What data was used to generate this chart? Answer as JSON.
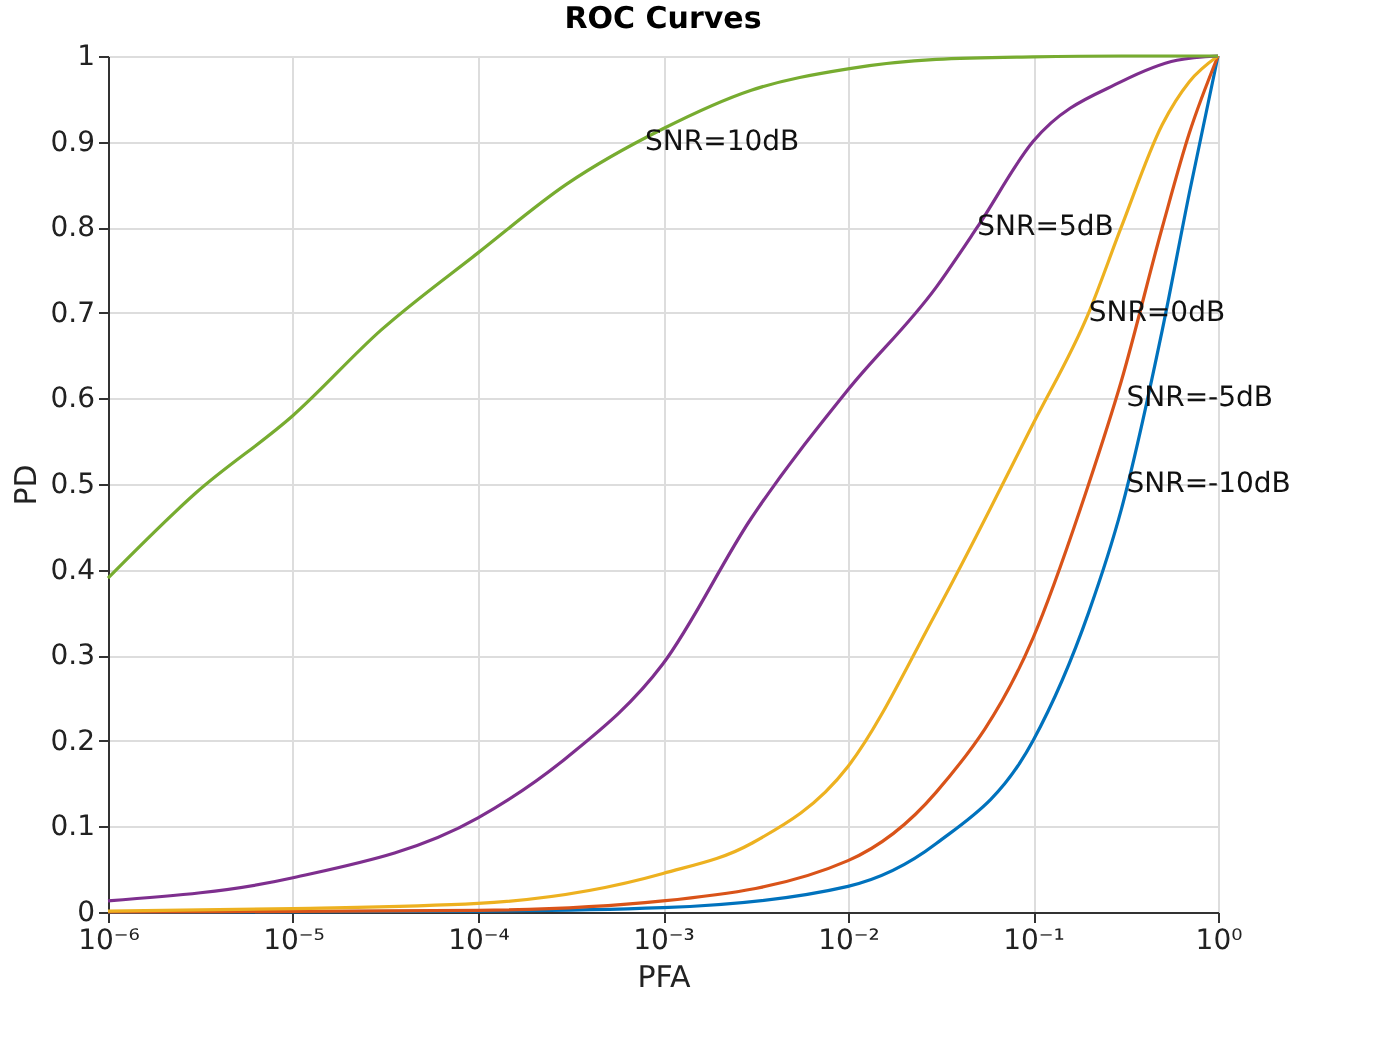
{
  "chart_data": {
    "type": "line",
    "title": "ROC Curves",
    "xlabel": "PFA",
    "ylabel": "PD",
    "log": "x",
    "xlim": [
      1e-06,
      1
    ],
    "ylim": [
      0,
      1
    ],
    "xticks": [
      {
        "value": 1e-06,
        "label": "10⁻⁶"
      },
      {
        "value": 1e-05,
        "label": "10⁻⁵"
      },
      {
        "value": 0.0001,
        "label": "10⁻⁴"
      },
      {
        "value": 0.001,
        "label": "10⁻³"
      },
      {
        "value": 0.01,
        "label": "10⁻²"
      },
      {
        "value": 0.1,
        "label": "10⁻¹"
      },
      {
        "value": 1,
        "label": "10⁰"
      }
    ],
    "yticks": [
      0,
      0.1,
      0.2,
      0.3,
      0.4,
      0.5,
      0.6,
      0.7,
      0.8,
      0.9,
      1
    ],
    "grid": true,
    "line_style": "solid",
    "marker": "none",
    "series": [
      {
        "color": "#0072bd",
        "x": [
          1e-06,
          0.0001,
          0.001,
          0.01,
          0.03,
          0.1,
          0.2,
          0.3,
          0.5,
          0.7,
          1
        ],
        "values": [
          0,
          0.001,
          0.005,
          0.03,
          0.08,
          0.2,
          0.35,
          0.47,
          0.68,
          0.84,
          1
        ]
      },
      {
        "color": "#d95319",
        "x": [
          1e-06,
          0.0001,
          0.001,
          0.01,
          0.03,
          0.1,
          0.2,
          0.3,
          0.5,
          0.7,
          1
        ],
        "values": [
          0,
          0.002,
          0.013,
          0.06,
          0.14,
          0.32,
          0.5,
          0.62,
          0.8,
          0.91,
          1
        ]
      },
      {
        "color": "#edb120",
        "x": [
          1e-06,
          1e-05,
          0.0001,
          0.001,
          0.003,
          0.01,
          0.03,
          0.1,
          0.2,
          0.3,
          0.5,
          0.7,
          1
        ],
        "values": [
          0.001,
          0.004,
          0.01,
          0.045,
          0.08,
          0.17,
          0.35,
          0.57,
          0.7,
          0.8,
          0.92,
          0.97,
          1
        ]
      },
      {
        "color": "#7e2f8e",
        "x": [
          1e-06,
          1e-05,
          0.0001,
          0.0003,
          0.001,
          0.003,
          0.01,
          0.03,
          0.05,
          0.1,
          0.3,
          0.6,
          1
        ],
        "values": [
          0.013,
          0.04,
          0.11,
          0.18,
          0.29,
          0.46,
          0.61,
          0.73,
          0.8,
          0.9,
          0.97,
          0.995,
          1
        ]
      },
      {
        "color": "#77ac30",
        "x": [
          1e-06,
          3e-06,
          1e-05,
          3e-05,
          0.0001,
          0.0003,
          0.001,
          0.003,
          0.01,
          0.03,
          0.1,
          0.3,
          1
        ],
        "values": [
          0.39,
          0.49,
          0.58,
          0.68,
          0.77,
          0.85,
          0.915,
          0.96,
          0.985,
          0.996,
          0.999,
          1,
          1
        ]
      }
    ],
    "annotations": [
      {
        "text": "SNR=10dB",
        "x": 0.0008,
        "y": 0.9
      },
      {
        "text": "SNR=5dB",
        "x": 0.05,
        "y": 0.8
      },
      {
        "text": "SNR=0dB",
        "x": 0.2,
        "y": 0.7
      },
      {
        "text": "SNR=-5dB",
        "x": 0.32,
        "y": 0.6
      },
      {
        "text": "SNR=-10dB",
        "x": 0.32,
        "y": 0.5
      }
    ]
  }
}
